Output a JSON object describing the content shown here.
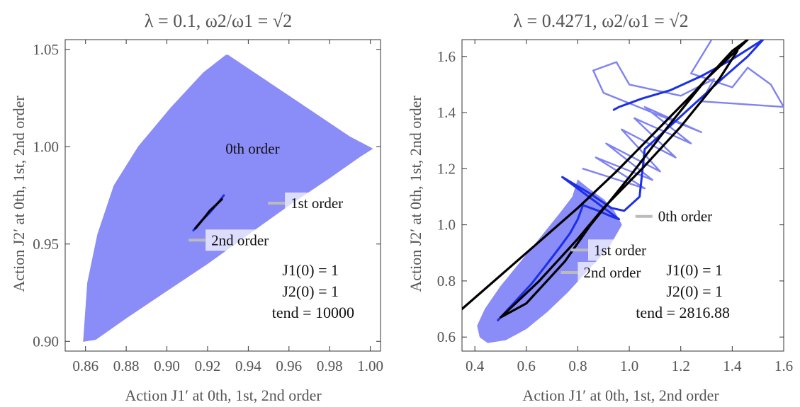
{
  "chart_data": [
    {
      "type": "area",
      "title": "λ = 0.1, ω2/ω1 = √2",
      "xlabel": "Action J1′ at 0th, 1st, 2nd order",
      "ylabel": "Action J2′ at 0th, 1st, 2nd order",
      "xlim": [
        0.85,
        1.005
      ],
      "ylim": [
        0.895,
        1.055
      ],
      "x_ticks": [
        "0.86",
        "0.88",
        "0.90",
        "0.92",
        "0.94",
        "0.96",
        "0.98",
        "1.00"
      ],
      "y_ticks": [
        "0.90",
        "0.95",
        "1.00",
        "1.05"
      ],
      "x_tick_values": [
        0.86,
        0.88,
        0.9,
        0.92,
        0.94,
        0.96,
        0.98,
        1.0
      ],
      "y_tick_values": [
        0.9,
        0.95,
        1.0,
        1.05
      ],
      "grid": false,
      "series": [
        {
          "name": "0th order",
          "color": "#8a8cf7",
          "kind": "filled-region",
          "x": [
            0.859,
            0.861,
            0.866,
            0.874,
            0.886,
            0.902,
            0.918,
            0.929,
            0.93,
            0.96,
            0.99,
            1.001,
            0.995,
            0.98,
            0.96,
            0.94,
            0.92,
            0.9,
            0.88,
            0.865,
            0.859
          ],
          "y": [
            0.9,
            0.93,
            0.955,
            0.98,
            1.0,
            1.02,
            1.038,
            1.047,
            1.047,
            1.026,
            1.005,
            0.999,
            0.995,
            0.984,
            0.97,
            0.955,
            0.94,
            0.926,
            0.912,
            0.901,
            0.9
          ]
        },
        {
          "name": "1st order",
          "color": "#1c2fe8",
          "kind": "trajectory",
          "x": [
            0.913,
            0.917,
            0.921,
            0.925,
            0.928
          ],
          "y": [
            0.957,
            0.962,
            0.966,
            0.971,
            0.975
          ]
        },
        {
          "name": "2nd order",
          "color": "#000000",
          "kind": "trajectory",
          "x": [
            0.914,
            0.918,
            0.921,
            0.924,
            0.927
          ],
          "y": [
            0.958,
            0.963,
            0.967,
            0.97,
            0.973
          ]
        }
      ],
      "annotations": [
        {
          "text": "0th order",
          "x": 0.926,
          "y": 0.999
        },
        {
          "text": "1st order",
          "x": 0.958,
          "y": 0.971
        },
        {
          "text": "2nd order",
          "x": 0.919,
          "y": 0.952
        }
      ],
      "info": [
        "J1(0) = 1",
        "J2(0) = 1",
        "tend = 10000"
      ]
    },
    {
      "type": "line",
      "title": "λ = 0.4271, ω2/ω1 = √2",
      "xlabel": "Action J1′ at 0th, 1st, 2nd order",
      "ylabel": "Action J2′ at 0th, 1st, 2nd order",
      "xlim": [
        0.35,
        1.6
      ],
      "ylim": [
        0.55,
        1.66
      ],
      "x_ticks": [
        "0.4",
        "0.6",
        "0.8",
        "1.0",
        "1.2",
        "1.4",
        "1.6"
      ],
      "y_ticks": [
        "0.6",
        "0.8",
        "1.0",
        "1.2",
        "1.4",
        "1.6"
      ],
      "x_tick_values": [
        0.4,
        0.6,
        0.8,
        1.0,
        1.2,
        1.4,
        1.6
      ],
      "y_tick_values": [
        0.6,
        0.8,
        1.0,
        1.2,
        1.4,
        1.6
      ],
      "grid": false,
      "series": [
        {
          "name": "0th order",
          "color": "#8a8cf7",
          "kind": "filled-region",
          "x": [
            0.42,
            0.41,
            0.44,
            0.5,
            0.58,
            0.66,
            0.73,
            0.78,
            0.8,
            0.84,
            0.9,
            0.94,
            0.97,
            0.92,
            0.84,
            0.76,
            0.68,
            0.6,
            0.52,
            0.45,
            0.42
          ],
          "y": [
            0.6,
            0.64,
            0.7,
            0.78,
            0.87,
            0.96,
            1.04,
            1.1,
            1.16,
            1.13,
            1.09,
            1.05,
            1.0,
            0.92,
            0.84,
            0.76,
            0.69,
            0.63,
            0.59,
            0.58,
            0.6
          ]
        },
        {
          "name": "0th order loops",
          "color": "#7f82f2",
          "kind": "trajectory",
          "x": [
            0.82,
            1.06,
            0.87,
            1.09,
            0.91,
            1.12,
            0.97,
            1.18,
            1.02,
            1.24,
            1.06,
            1.28,
            0.9,
            0.86,
            0.95,
            1.0,
            1.2,
            1.33,
            1.28,
            1.6,
            1.55,
            1.46,
            1.4,
            1.24,
            1.32
          ],
          "y": [
            1.2,
            1.13,
            1.24,
            1.16,
            1.29,
            1.19,
            1.34,
            1.24,
            1.38,
            1.29,
            1.42,
            1.33,
            1.47,
            1.55,
            1.58,
            1.5,
            1.46,
            1.52,
            1.44,
            1.42,
            1.5,
            1.56,
            1.49,
            1.54,
            1.66
          ]
        },
        {
          "name": "1st order",
          "color": "#1c2fe8",
          "kind": "trajectory",
          "x": [
            0.49,
            0.55,
            0.62,
            0.68,
            0.73,
            0.77,
            0.8,
            0.82,
            0.88,
            0.93,
            0.96,
            0.74,
            0.85,
            0.93,
            0.98,
            1.04,
            1.06,
            1.12,
            1.18,
            1.24,
            1.3,
            1.36,
            1.46,
            1.52,
            1.4,
            1.28,
            1.16,
            1.05,
            0.96,
            0.94
          ],
          "y": [
            0.66,
            0.72,
            0.79,
            0.86,
            0.92,
            0.97,
            1.02,
            1.07,
            1.05,
            1.03,
            1.02,
            1.17,
            1.11,
            1.06,
            1.05,
            1.1,
            1.27,
            1.32,
            1.37,
            1.42,
            1.47,
            1.52,
            1.6,
            1.66,
            1.59,
            1.53,
            1.48,
            1.45,
            1.42,
            1.41
          ]
        },
        {
          "name": "2nd order",
          "color": "#000000",
          "kind": "trajectory",
          "x": [
            0.35,
            0.5,
            0.65,
            0.8,
            0.95,
            1.1,
            1.25,
            1.4,
            1.46,
            1.3,
            1.15,
            1.0,
            0.85,
            0.75,
            0.68,
            0.6,
            0.5,
            0.65,
            0.8,
            0.9,
            1.05,
            1.2,
            1.35,
            1.42
          ],
          "y": [
            0.7,
            0.82,
            0.94,
            1.06,
            1.19,
            1.33,
            1.47,
            1.62,
            1.66,
            1.52,
            1.35,
            1.17,
            1.0,
            0.87,
            0.8,
            0.72,
            0.67,
            0.8,
            0.95,
            1.06,
            1.2,
            1.35,
            1.52,
            1.62
          ]
        }
      ],
      "annotations": [
        {
          "text": "0th order",
          "x": 1.09,
          "y": 1.03
        },
        {
          "text": "1st order",
          "x": 0.84,
          "y": 0.91
        },
        {
          "text": "2nd order",
          "x": 0.8,
          "y": 0.83
        }
      ],
      "info": [
        "J1(0) = 1",
        "J2(0) = 1",
        "tend = 2816.88"
      ]
    }
  ]
}
